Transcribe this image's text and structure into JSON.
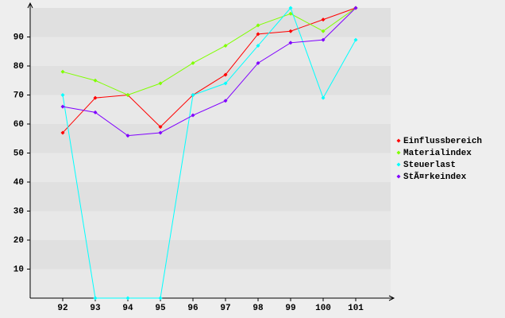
{
  "chart_data": {
    "type": "line",
    "categories": [
      "92",
      "93",
      "94",
      "95",
      "96",
      "97",
      "98",
      "99",
      "100",
      "101"
    ],
    "series": [
      {
        "name": "Einflussbereich",
        "color": "#ff0000",
        "values": [
          57,
          69,
          70,
          59,
          70,
          77,
          91,
          92,
          96,
          100
        ]
      },
      {
        "name": "Materialindex",
        "color": "#80ff00",
        "values": [
          78,
          75,
          70,
          74,
          81,
          87,
          94,
          98,
          92,
          100
        ]
      },
      {
        "name": "Steuerlast",
        "color": "#00ffff",
        "values": [
          70,
          0,
          0,
          0,
          70,
          74,
          87,
          100,
          69,
          89
        ]
      },
      {
        "name": "StÃ¤rkeindex",
        "color": "#8000ff",
        "values": [
          66,
          64,
          56,
          57,
          63,
          68,
          81,
          88,
          89,
          100
        ]
      }
    ],
    "ylim": [
      0,
      100
    ],
    "yticks": [
      10,
      20,
      30,
      40,
      50,
      60,
      70,
      80,
      90
    ],
    "grid": true,
    "legend": "right"
  }
}
